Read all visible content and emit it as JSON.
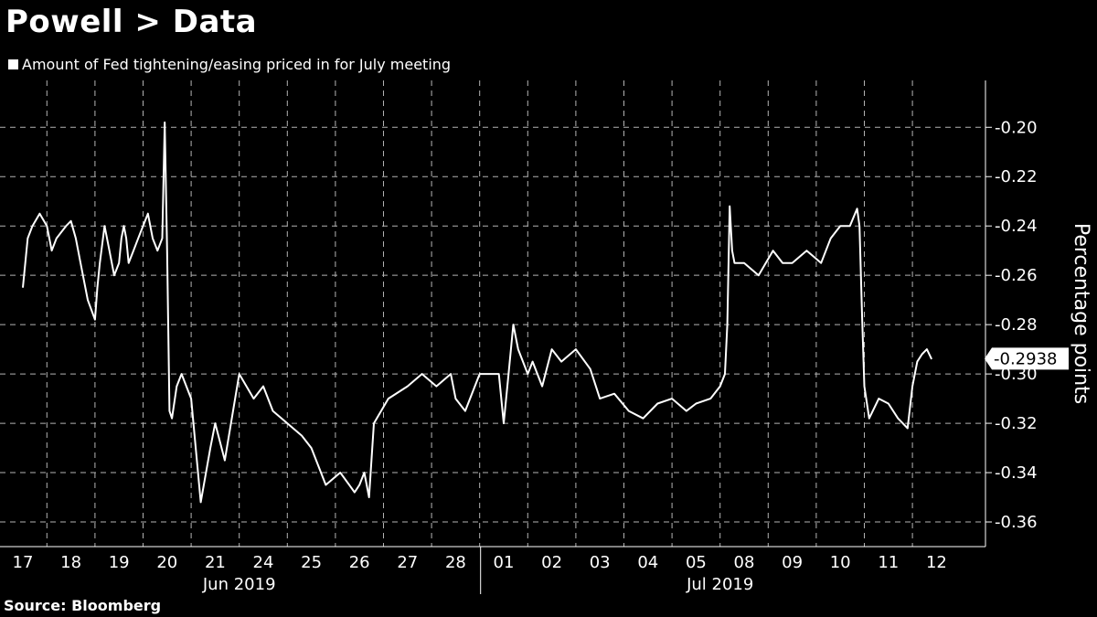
{
  "header": {
    "title": "Powell > Data",
    "legend": "Amount of Fed tightening/easing priced in for July meeting",
    "source": "Source: Bloomberg"
  },
  "chart_data": {
    "type": "line",
    "ylabel": "Percentage points",
    "ylim": [
      -0.37,
      -0.181
    ],
    "yticks": [
      -0.2,
      -0.22,
      -0.24,
      -0.26,
      -0.28,
      -0.3,
      -0.32,
      -0.34,
      -0.36
    ],
    "ytick_labels": [
      "-0.20",
      "-0.22",
      "-0.24",
      "-0.26",
      "-0.28",
      "-0.30",
      "-0.32",
      "-0.34",
      "-0.36"
    ],
    "x_days": [
      "17",
      "18",
      "19",
      "20",
      "21",
      "24",
      "25",
      "26",
      "27",
      "28",
      "01",
      "02",
      "03",
      "04",
      "05",
      "08",
      "09",
      "10",
      "11",
      "12"
    ],
    "x_months": [
      "Jun 2019",
      "Jul 2019"
    ],
    "grid": true,
    "last_value_label": "-0.2938",
    "series": [
      {
        "color": "#ffffff",
        "x": [
          0.0,
          0.1,
          0.2,
          0.35,
          0.5,
          0.6,
          0.7,
          0.9,
          1.0,
          1.1,
          1.2,
          1.35,
          1.5,
          1.55,
          1.6,
          1.7,
          1.8,
          1.9,
          2.0,
          2.05,
          2.1,
          2.15,
          2.2,
          2.3,
          2.4,
          2.5,
          2.6,
          2.7,
          2.8,
          2.9,
          2.95,
          3.0,
          3.05,
          3.1,
          3.2,
          3.3,
          3.5,
          3.7,
          3.9,
          4.0,
          4.2,
          4.5,
          4.8,
          5.0,
          5.2,
          5.5,
          5.8,
          6.0,
          6.2,
          6.3,
          6.6,
          6.9,
          7.0,
          7.1,
          7.2,
          7.3,
          7.6,
          8.0,
          8.3,
          8.6,
          8.9,
          9.0,
          9.2,
          9.5,
          9.9,
          10.0,
          10.1,
          10.2,
          10.3,
          10.5,
          10.6,
          10.8,
          11.0,
          11.2,
          11.5,
          11.8,
          12.0,
          12.3,
          12.6,
          12.9,
          13.2,
          13.5,
          13.8,
          14.0,
          14.3,
          14.5,
          14.6,
          14.65,
          14.7,
          14.75,
          14.8,
          15.0,
          15.3,
          15.6,
          15.8,
          16.0,
          16.3,
          16.6,
          16.8,
          17.0,
          17.2,
          17.35,
          17.4,
          17.45,
          17.5,
          17.6,
          17.8,
          18.0,
          18.2,
          18.4,
          18.5,
          18.6,
          18.7,
          18.8,
          18.9
        ],
        "values": [
          -0.265,
          -0.245,
          -0.24,
          -0.235,
          -0.24,
          -0.25,
          -0.245,
          -0.24,
          -0.238,
          -0.245,
          -0.255,
          -0.27,
          -0.278,
          -0.265,
          -0.255,
          -0.24,
          -0.25,
          -0.26,
          -0.255,
          -0.245,
          -0.24,
          -0.245,
          -0.255,
          -0.25,
          -0.245,
          -0.24,
          -0.235,
          -0.245,
          -0.25,
          -0.245,
          -0.198,
          -0.25,
          -0.315,
          -0.318,
          -0.305,
          -0.3,
          -0.31,
          -0.352,
          -0.33,
          -0.32,
          -0.335,
          -0.3,
          -0.31,
          -0.305,
          -0.315,
          -0.32,
          -0.325,
          -0.33,
          -0.34,
          -0.345,
          -0.34,
          -0.348,
          -0.345,
          -0.34,
          -0.35,
          -0.32,
          -0.31,
          -0.305,
          -0.3,
          -0.305,
          -0.3,
          -0.31,
          -0.315,
          -0.3,
          -0.3,
          -0.32,
          -0.3,
          -0.28,
          -0.29,
          -0.3,
          -0.295,
          -0.305,
          -0.29,
          -0.295,
          -0.29,
          -0.298,
          -0.31,
          -0.308,
          -0.315,
          -0.318,
          -0.312,
          -0.31,
          -0.315,
          -0.312,
          -0.31,
          -0.305,
          -0.3,
          -0.28,
          -0.232,
          -0.25,
          -0.255,
          -0.255,
          -0.26,
          -0.25,
          -0.255,
          -0.255,
          -0.25,
          -0.255,
          -0.245,
          -0.24,
          -0.24,
          -0.233,
          -0.24,
          -0.275,
          -0.305,
          -0.318,
          -0.31,
          -0.312,
          -0.318,
          -0.322,
          -0.305,
          -0.295,
          -0.292,
          -0.29,
          -0.294
        ]
      }
    ]
  }
}
